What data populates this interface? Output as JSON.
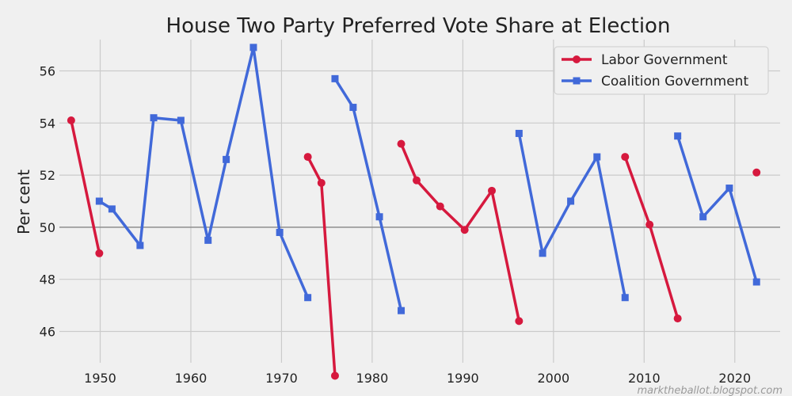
{
  "chart_data": {
    "type": "line",
    "title": "House Two Party Preferred Vote Share at Election",
    "xlabel": "",
    "ylabel": "Per cent",
    "xlim": [
      1945.5,
      2025
    ],
    "ylim": [
      44.8,
      57.2
    ],
    "xticks": [
      1950,
      1960,
      1970,
      1980,
      1990,
      2000,
      2010,
      2020
    ],
    "yticks": [
      46,
      48,
      50,
      52,
      54,
      56
    ],
    "reference_line": 50,
    "grid": true,
    "legend_position": "top-right",
    "series": [
      {
        "name": "Labor Government",
        "color": "#d6193e",
        "marker": "circle",
        "segments": [
          [
            [
              1946.8,
              54.1
            ],
            [
              1949.9,
              49.0
            ]
          ],
          [
            [
              1972.9,
              52.7
            ],
            [
              1974.4,
              51.7
            ],
            [
              1975.9,
              44.3
            ]
          ],
          [
            [
              1983.2,
              53.2
            ],
            [
              1984.9,
              51.8
            ],
            [
              1987.5,
              50.8
            ],
            [
              1990.2,
              49.9
            ],
            [
              1993.2,
              51.4
            ],
            [
              1996.2,
              46.4
            ]
          ],
          [
            [
              2007.9,
              52.7
            ],
            [
              2010.6,
              50.1
            ],
            [
              2013.7,
              46.5
            ]
          ],
          [
            [
              2022.4,
              52.1
            ]
          ]
        ]
      },
      {
        "name": "Coalition Government",
        "color": "#4169d9",
        "marker": "square",
        "segments": [
          [
            [
              1949.9,
              51.0
            ],
            [
              1951.3,
              50.7
            ],
            [
              1954.4,
              49.3
            ],
            [
              1955.9,
              54.2
            ],
            [
              1958.9,
              54.1
            ],
            [
              1961.9,
              49.5
            ],
            [
              1963.9,
              52.6
            ],
            [
              1966.9,
              56.9
            ],
            [
              1969.8,
              49.8
            ],
            [
              1972.9,
              47.3
            ]
          ],
          [
            [
              1975.9,
              55.7
            ],
            [
              1977.9,
              54.6
            ],
            [
              1980.8,
              50.4
            ],
            [
              1983.2,
              46.8
            ]
          ],
          [
            [
              1996.2,
              53.6
            ],
            [
              1998.8,
              49.0
            ],
            [
              2001.9,
              51.0
            ],
            [
              2004.8,
              52.7
            ],
            [
              2007.9,
              47.3
            ]
          ],
          [
            [
              2013.7,
              53.5
            ],
            [
              2016.5,
              50.4
            ],
            [
              2019.4,
              51.5
            ],
            [
              2022.4,
              47.9
            ]
          ]
        ]
      }
    ]
  },
  "credit": "marktheballot.blogspot.com"
}
